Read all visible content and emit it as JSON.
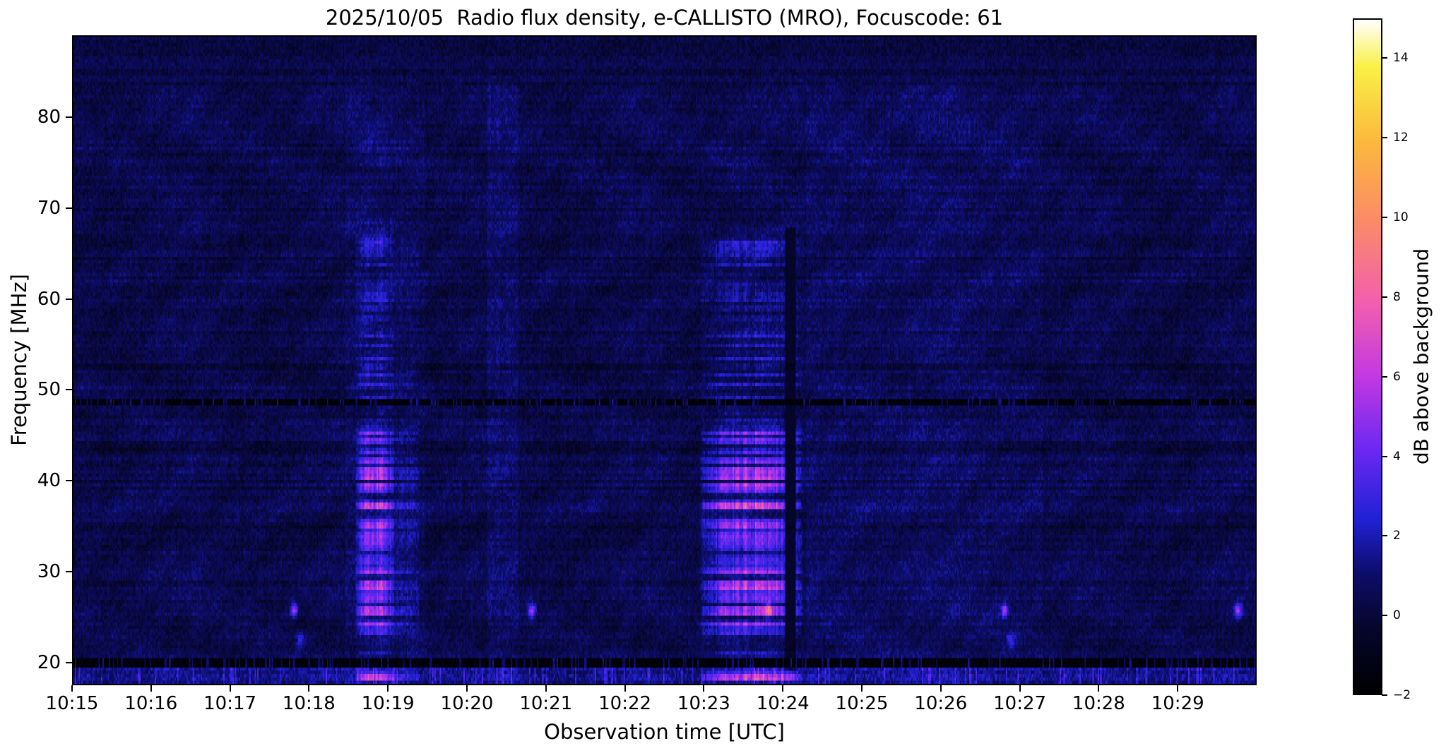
{
  "chart_data": {
    "type": "heatmap",
    "title": "2025/10/05  Radio flux density, e-CALLISTO (MRO), Focuscode: 61",
    "xlabel": "Observation time [UTC]",
    "ylabel": "Frequency [MHz]",
    "x_ticks": [
      "10:15",
      "10:16",
      "10:17",
      "10:18",
      "10:19",
      "10:20",
      "10:21",
      "10:22",
      "10:23",
      "10:24",
      "10:25",
      "10:26",
      "10:27",
      "10:28",
      "10:29"
    ],
    "x_range_minutes": [
      0,
      15
    ],
    "y_ticks": [
      80,
      70,
      60,
      50,
      40,
      30,
      20
    ],
    "ylim": [
      17.5,
      89.0
    ],
    "grid": false,
    "legend": "none",
    "colorbar": {
      "label": "dB above background",
      "ticks": [
        14,
        12,
        10,
        8,
        6,
        4,
        2,
        0,
        -2
      ],
      "vmin": -2,
      "vmax": 15,
      "stops": [
        {
          "t": 0.0,
          "color": "#000000"
        },
        {
          "t": 0.1,
          "color": "#06062e"
        },
        {
          "t": 0.18,
          "color": "#0d0d6b"
        },
        {
          "t": 0.26,
          "color": "#2121d6"
        },
        {
          "t": 0.36,
          "color": "#6a28f2"
        },
        {
          "t": 0.47,
          "color": "#c238e2"
        },
        {
          "t": 0.58,
          "color": "#f25fae"
        },
        {
          "t": 0.7,
          "color": "#fb8a68"
        },
        {
          "t": 0.82,
          "color": "#fcb93c"
        },
        {
          "t": 0.93,
          "color": "#f9f046"
        },
        {
          "t": 1.0,
          "color": "#ffffff"
        }
      ]
    },
    "background_db": {
      "mean": 0.35,
      "noise": 1.4
    },
    "bursts": [
      {
        "t_start": 3.58,
        "t_end": 4.08,
        "f_low": 17.5,
        "f_high": 69.0,
        "peak_db": 7.5,
        "label": "burst 10:18:35-10:19:05"
      },
      {
        "t_start": 4.05,
        "t_end": 4.4,
        "f_low": 17.5,
        "f_high": 69.0,
        "peak_db": 2.2,
        "label": "decay 10:19:03-10:19:24"
      },
      {
        "t_start": 3.6,
        "t_end": 4.05,
        "f_low": 72.5,
        "f_high": 81.0,
        "peak_db": 2.2,
        "label": "high-band trace near 10:19"
      },
      {
        "t_start": 7.95,
        "t_end": 9.25,
        "f_low": 17.5,
        "f_high": 68.0,
        "peak_db": 8.0,
        "label": "burst group 10:22:57-10:24:15"
      },
      {
        "t_start": 8.0,
        "t_end": 9.0,
        "f_low": 72.0,
        "f_high": 83.0,
        "peak_db": 2.0,
        "label": "high-band trace 10:23-10:24"
      }
    ],
    "burst_streaks": [
      {
        "f": 37.2,
        "strength": 1.0
      },
      {
        "f": 28.6,
        "strength": 0.9
      },
      {
        "f": 40.9,
        "strength": 0.8
      },
      {
        "f": 25.6,
        "strength": 0.8
      },
      {
        "f": 33.6,
        "strength": 0.7
      },
      {
        "f": 44.3,
        "strength": 0.6
      },
      {
        "f": 35.2,
        "strength": 0.55
      },
      {
        "f": 26.9,
        "strength": 0.6
      },
      {
        "f": 39.1,
        "strength": 0.55
      },
      {
        "f": 31.1,
        "strength": 0.5
      },
      {
        "f": 42.1,
        "strength": 0.5
      },
      {
        "f": 23.4,
        "strength": 0.45
      },
      {
        "f": 64.8,
        "strength": 0.5
      },
      {
        "f": 61.3,
        "strength": 0.45
      },
      {
        "f": 57.9,
        "strength": 0.4
      },
      {
        "f": 66.9,
        "strength": 0.45
      }
    ],
    "soft_columns": [
      {
        "t_start": 3.45,
        "t_end": 4.45,
        "add_db": 0.3
      },
      {
        "t_start": 5.25,
        "t_end": 5.65,
        "add_db": 0.45
      },
      {
        "t_start": 9.3,
        "t_end": 12.3,
        "add_db": 0.35
      }
    ],
    "gap_columns": [
      {
        "t": 9.1,
        "half_width": 0.06,
        "f_low": 19.0,
        "f_high": 68.0
      }
    ],
    "dots": [
      {
        "t": 2.8,
        "f": 25.6,
        "db": 5.0
      },
      {
        "t": 5.82,
        "f": 25.6,
        "db": 4.5
      },
      {
        "t": 8.82,
        "f": 25.6,
        "db": 5.0
      },
      {
        "t": 11.82,
        "f": 25.6,
        "db": 4.5
      },
      {
        "t": 14.78,
        "f": 25.6,
        "db": 5.0
      },
      {
        "t": 2.88,
        "f": 22.3,
        "db": 2.5
      },
      {
        "t": 11.9,
        "f": 22.3,
        "db": 2.2
      }
    ],
    "h_lines": [
      {
        "f": 48.6,
        "half_width": 0.4,
        "type": "rfi_dark"
      },
      {
        "f": 19.85,
        "half_width": 0.45,
        "type": "rfi_dark"
      },
      {
        "f": 52.6,
        "half_width": 0.28,
        "db": -0.6
      },
      {
        "f": 34.9,
        "half_width": 0.22,
        "db": -0.45
      },
      {
        "f": 43.6,
        "half_width": 0.22,
        "db": -0.35
      },
      {
        "f": 64.4,
        "half_width": 0.22,
        "db": -0.3
      },
      {
        "f": 75.8,
        "half_width": 0.22,
        "db": -0.3
      },
      {
        "f": 21.2,
        "half_width": 0.28,
        "db": -0.4
      }
    ]
  }
}
